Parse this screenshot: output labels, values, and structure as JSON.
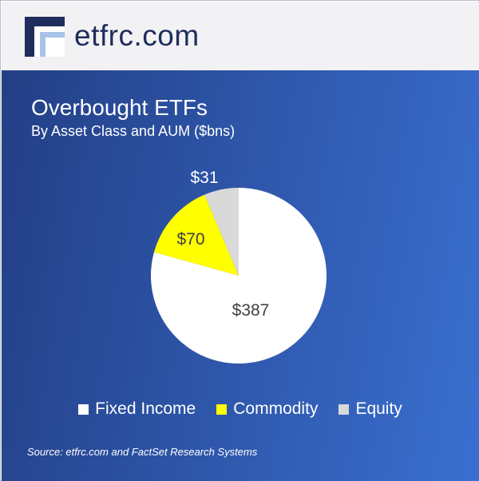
{
  "header": {
    "logo_text": "etfrc.com",
    "logo_icon": "etfrc-square-logo"
  },
  "colors": {
    "panel_start": "#233f86",
    "panel_end": "#3a6fd0",
    "fixed_income": "#ffffff",
    "commodity": "#ffff00",
    "equity": "#d9d9d9"
  },
  "chart_data": {
    "type": "pie",
    "title": "Overbought ETFs",
    "subtitle": "By Asset Class and AUM ($bns)",
    "unit": "$bns",
    "start_angle": "12 o'clock",
    "direction": "clockwise",
    "legend_position": "bottom",
    "slices": [
      {
        "label": "Fixed Income",
        "value": 387,
        "data_label": "$387",
        "color": "#ffffff",
        "label_color": "#404040"
      },
      {
        "label": "Commodity",
        "value": 70,
        "data_label": "$70",
        "color": "#ffff00",
        "label_color": "#404040"
      },
      {
        "label": "Equity",
        "value": 31,
        "data_label": "$31",
        "color": "#d9d9d9",
        "label_color": "#ffffff"
      }
    ]
  },
  "footer": {
    "source": "Source: etfrc.com and FactSet Research Systems"
  }
}
